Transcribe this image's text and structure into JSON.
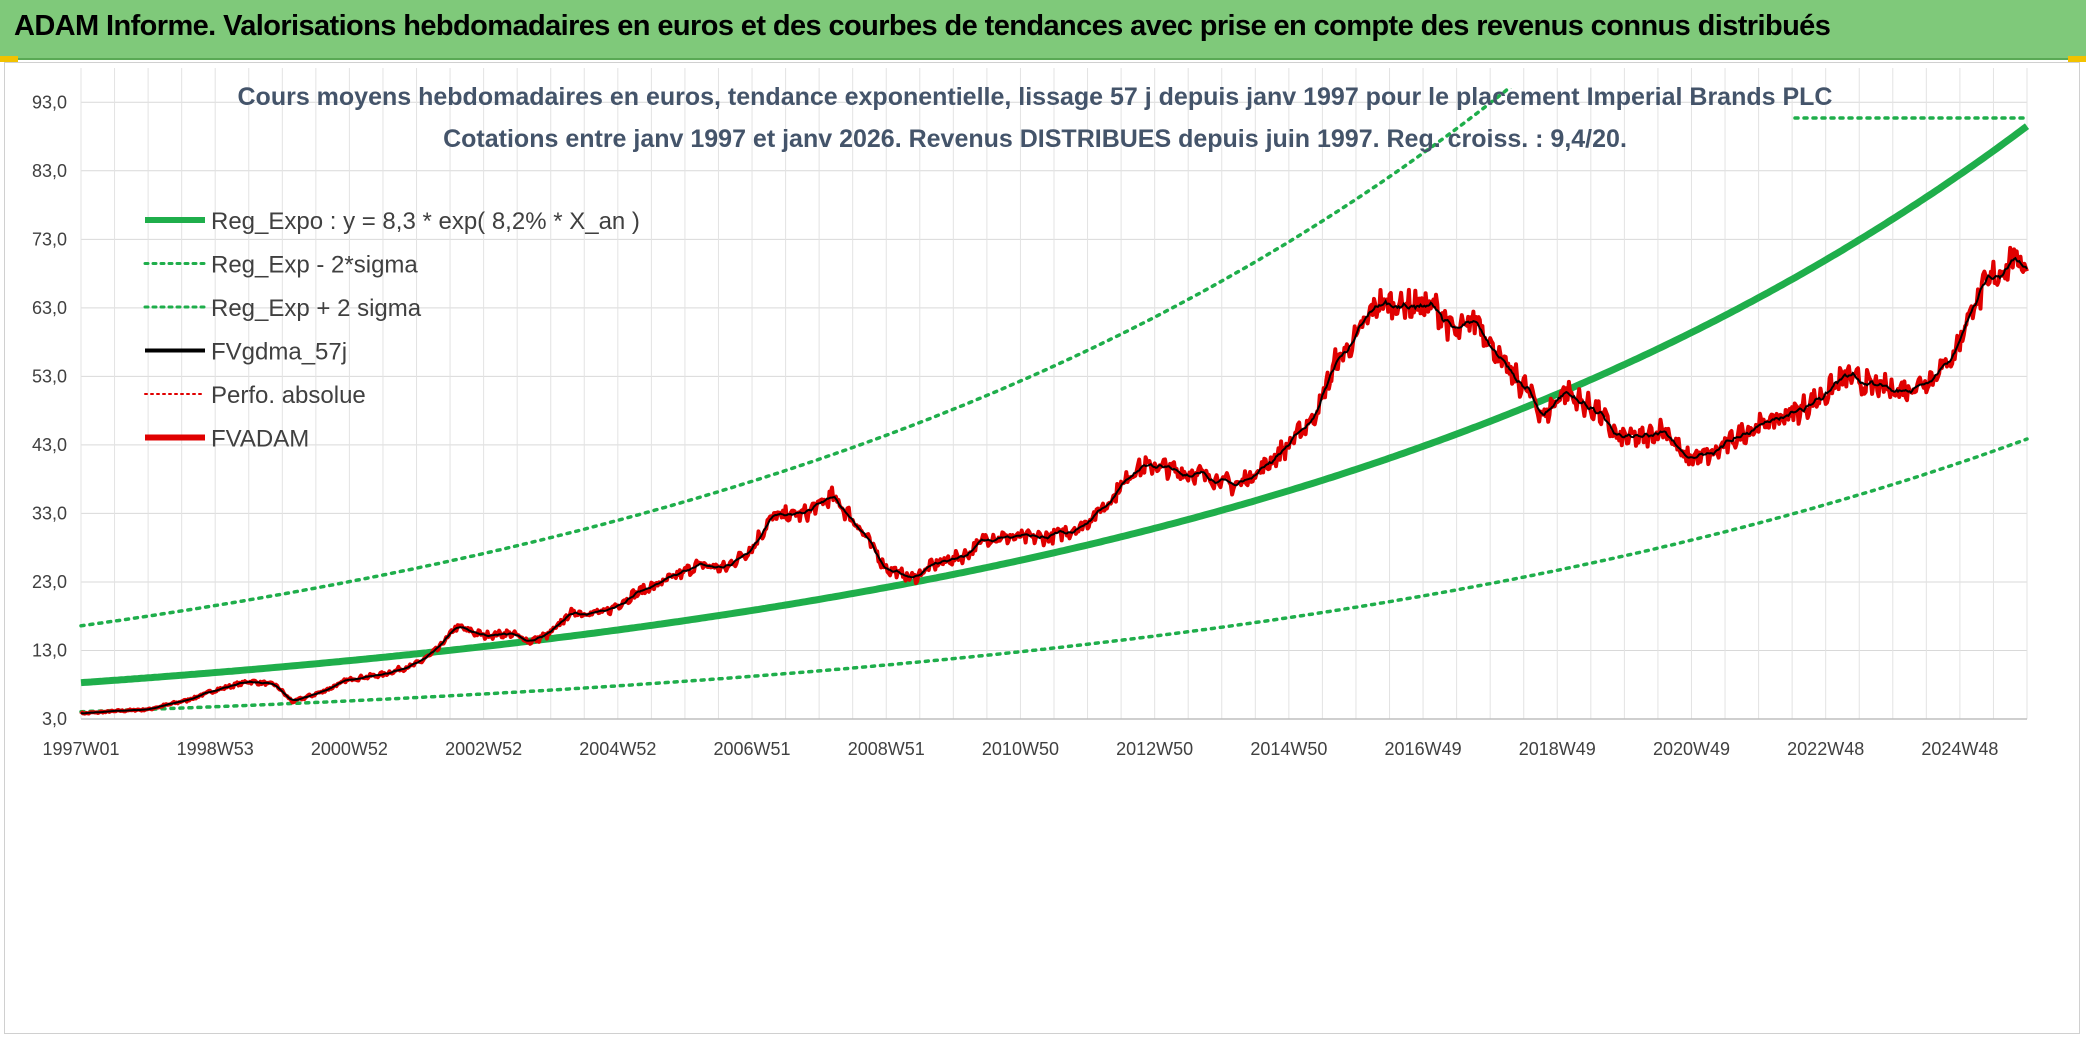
{
  "banner": {
    "title": "ADAM Informe. Valorisations hebdomadaires en euros et des courbes de tendances avec prise en compte des revenus connus distribués"
  },
  "chart_data": {
    "type": "line",
    "title_line1": "Cours moyens hebdomadaires en euros, tendance exponentielle, lissage 57 j depuis janv 1997 pour le placement Imperial Brands PLC",
    "title_line2": "Cotations entre janv 1997 et janv 2026. Revenus DISTRIBUES depuis juin 1997. Reg. croiss. : 9,4/20.",
    "ylim": [
      3.0,
      98.0
    ],
    "yticks": [
      "3,0",
      "13,0",
      "23,0",
      "33,0",
      "43,0",
      "53,0",
      "63,0",
      "73,0",
      "83,0",
      "93,0"
    ],
    "ytick_values": [
      3,
      13,
      23,
      33,
      43,
      53,
      63,
      73,
      83,
      93
    ],
    "xlim": [
      1997.0,
      2026.0
    ],
    "xticks": [
      "1997W01",
      "1998W53",
      "2000W52",
      "2002W52",
      "2004W52",
      "2006W51",
      "2008W51",
      "2010W50",
      "2012W50",
      "2014W50",
      "2016W49",
      "2018W49",
      "2020W49",
      "2022W48",
      "2024W48"
    ],
    "xtick_values": [
      1997.0,
      1999.0,
      2001.0,
      2003.0,
      2005.0,
      2007.0,
      2009.0,
      2011.0,
      2013.0,
      2015.0,
      2017.0,
      2019.0,
      2021.0,
      2023.0,
      2025.0
    ],
    "legend": [
      {
        "label": "Reg_Expo : y = 8,3 * exp( 8,2% *  X_an )",
        "color": "#1fae4b",
        "style": "solid-thick"
      },
      {
        "label": "Reg_Exp - 2*sigma",
        "color": "#1fae4b",
        "style": "dotted"
      },
      {
        "label": "Reg_Exp + 2 sigma",
        "color": "#1fae4b",
        "style": "dotted"
      },
      {
        "label": "FVgdma_57j",
        "color": "#000000",
        "style": "solid"
      },
      {
        "label": "Perfo. absolue",
        "color": "#e00000",
        "style": "dotted"
      },
      {
        "label": "FVADAM",
        "color": "#e00000",
        "style": "solid-thick"
      }
    ],
    "regression": {
      "a": 8.3,
      "rate": 0.082,
      "lower_factor": 0.49,
      "upper_factor": 2.0
    },
    "fvadam_anchors": [
      [
        1997.0,
        3.8
      ],
      [
        1997.6,
        4.2
      ],
      [
        1998.0,
        4.4
      ],
      [
        1998.6,
        5.8
      ],
      [
        1999.0,
        7.2
      ],
      [
        1999.5,
        8.5
      ],
      [
        1999.9,
        8.0
      ],
      [
        2000.15,
        5.5
      ],
      [
        2000.6,
        7.0
      ],
      [
        2001.0,
        8.8
      ],
      [
        2001.5,
        9.5
      ],
      [
        2002.0,
        11.0
      ],
      [
        2002.3,
        13.0
      ],
      [
        2002.6,
        16.5
      ],
      [
        2003.0,
        15.2
      ],
      [
        2003.4,
        15.5
      ],
      [
        2003.7,
        14.3
      ],
      [
        2004.0,
        15.5
      ],
      [
        2004.3,
        18.5
      ],
      [
        2004.8,
        18.5
      ],
      [
        2005.3,
        21.5
      ],
      [
        2005.8,
        23.5
      ],
      [
        2006.2,
        25.5
      ],
      [
        2006.6,
        25.0
      ],
      [
        2007.0,
        28.0
      ],
      [
        2007.3,
        32.5
      ],
      [
        2007.8,
        33.0
      ],
      [
        2008.2,
        35.5
      ],
      [
        2008.6,
        31.0
      ],
      [
        2009.0,
        25.0
      ],
      [
        2009.4,
        23.5
      ],
      [
        2009.7,
        25.5
      ],
      [
        2010.2,
        27.0
      ],
      [
        2010.5,
        29.5
      ],
      [
        2010.9,
        29.5
      ],
      [
        2011.4,
        29.5
      ],
      [
        2011.9,
        31.0
      ],
      [
        2012.3,
        34.5
      ],
      [
        2012.7,
        39.5
      ],
      [
        2013.0,
        40.0
      ],
      [
        2013.4,
        39.0
      ],
      [
        2013.8,
        38.5
      ],
      [
        2014.2,
        37.0
      ],
      [
        2014.6,
        39.5
      ],
      [
        2015.0,
        43.0
      ],
      [
        2015.4,
        47.5
      ],
      [
        2015.7,
        55.0
      ],
      [
        2016.0,
        58.5
      ],
      [
        2016.3,
        63.5
      ],
      [
        2016.7,
        63.5
      ],
      [
        2017.2,
        63.0
      ],
      [
        2017.5,
        59.0
      ],
      [
        2017.8,
        61.5
      ],
      [
        2018.2,
        54.5
      ],
      [
        2018.6,
        50.5
      ],
      [
        2018.8,
        47.0
      ],
      [
        2019.1,
        51.0
      ],
      [
        2019.3,
        49.5
      ],
      [
        2019.6,
        48.0
      ],
      [
        2019.9,
        44.0
      ],
      [
        2020.3,
        44.0
      ],
      [
        2020.6,
        45.5
      ],
      [
        2020.9,
        41.0
      ],
      [
        2021.3,
        41.5
      ],
      [
        2021.8,
        45.0
      ],
      [
        2022.2,
        46.5
      ],
      [
        2022.6,
        48.0
      ],
      [
        2023.0,
        50.5
      ],
      [
        2023.3,
        53.0
      ],
      [
        2023.7,
        51.5
      ],
      [
        2024.2,
        51.0
      ],
      [
        2024.6,
        53.0
      ],
      [
        2024.9,
        56.0
      ],
      [
        2025.2,
        63.5
      ],
      [
        2025.5,
        67.5
      ],
      [
        2025.8,
        70.0
      ],
      [
        2026.0,
        69.5
      ]
    ]
  }
}
